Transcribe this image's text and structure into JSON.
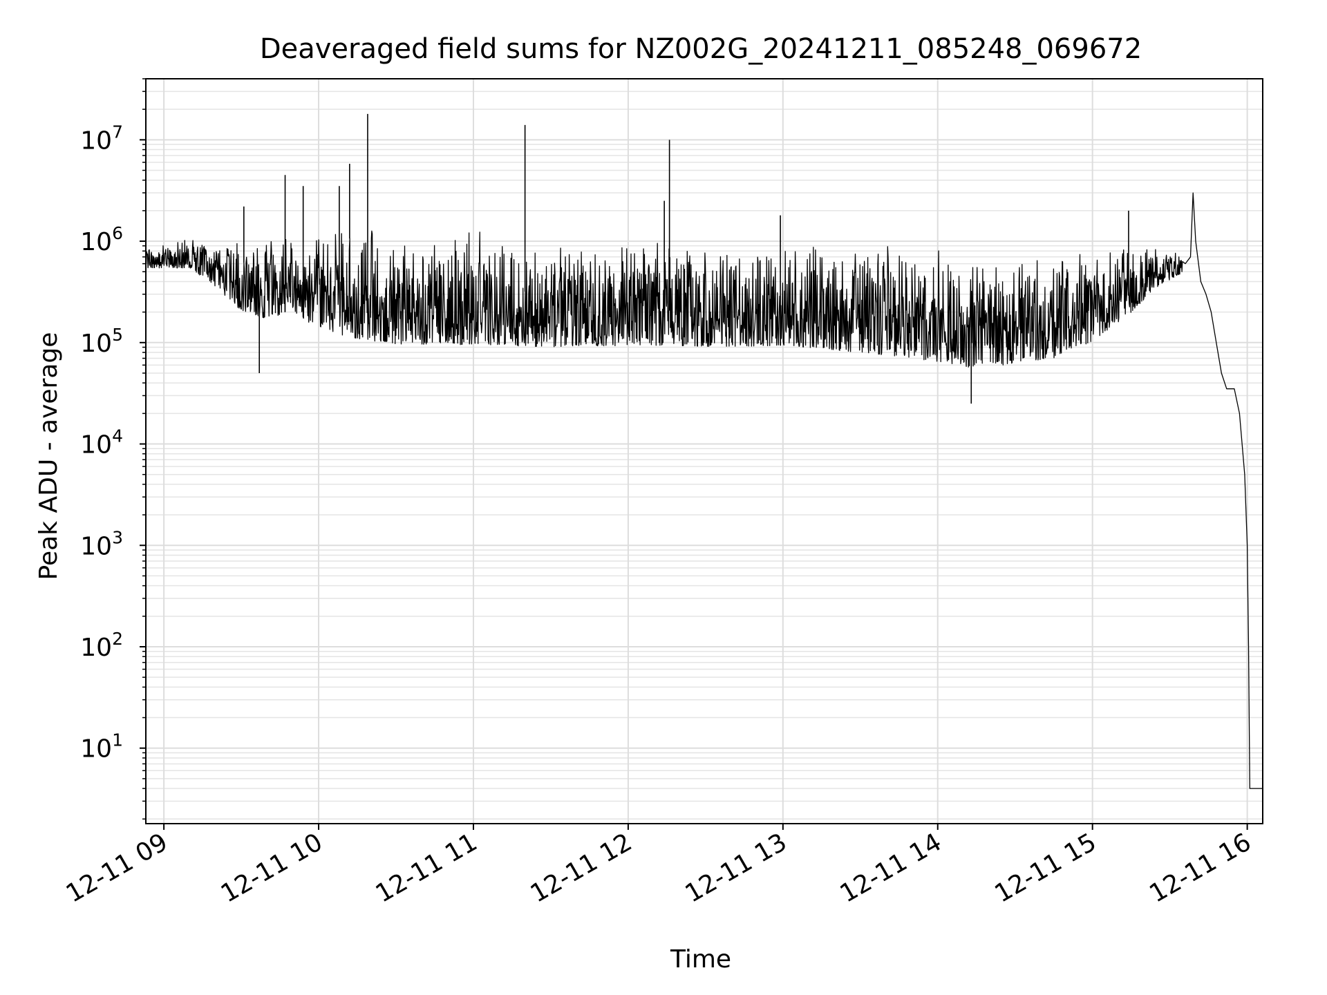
{
  "chart_data": {
    "type": "line",
    "title": "Deaveraged field sums for NZ002G_20241211_085248_069672",
    "xlabel": "Time",
    "ylabel": "Peak ADU - average",
    "y_scale": "log",
    "grid": true,
    "grid_minor": true,
    "legend": "none",
    "xlim": [
      "2024-12-11 08:53",
      "2024-12-11 16:06"
    ],
    "ylim": [
      1.8,
      40000000
    ],
    "x_ticks": [
      {
        "t": "2024-12-11 09:00",
        "label": "12-11 09"
      },
      {
        "t": "2024-12-11 10:00",
        "label": "12-11 10"
      },
      {
        "t": "2024-12-11 11:00",
        "label": "12-11 11"
      },
      {
        "t": "2024-12-11 12:00",
        "label": "12-11 12"
      },
      {
        "t": "2024-12-11 13:00",
        "label": "12-11 13"
      },
      {
        "t": "2024-12-11 14:00",
        "label": "12-11 14"
      },
      {
        "t": "2024-12-11 15:00",
        "label": "12-11 15"
      },
      {
        "t": "2024-12-11 16:00",
        "label": "12-11 16"
      }
    ],
    "y_ticks": [
      {
        "value": 10,
        "base": "10",
        "exp": "1"
      },
      {
        "value": 100,
        "base": "10",
        "exp": "2"
      },
      {
        "value": 1000,
        "base": "10",
        "exp": "3"
      },
      {
        "value": 10000,
        "base": "10",
        "exp": "4"
      },
      {
        "value": 100000,
        "base": "10",
        "exp": "5"
      },
      {
        "value": 1000000,
        "base": "10",
        "exp": "6"
      },
      {
        "value": 10000000,
        "base": "10",
        "exp": "7"
      }
    ],
    "series": [
      {
        "color": "#000000",
        "envelope": [
          {
            "t": "2024-12-11 08:53",
            "low": 500000,
            "high": 900000
          },
          {
            "t": "2024-12-11 09:10",
            "low": 480000,
            "high": 1100000
          },
          {
            "t": "2024-12-11 09:20",
            "low": 300000,
            "high": 1000000
          },
          {
            "t": "2024-12-11 09:30",
            "low": 150000,
            "high": 1200000
          },
          {
            "t": "2024-12-11 09:40",
            "low": 120000,
            "high": 1300000
          },
          {
            "t": "2024-12-11 09:50",
            "low": 150000,
            "high": 1300000
          },
          {
            "t": "2024-12-11 10:00",
            "low": 90000,
            "high": 1300000
          },
          {
            "t": "2024-12-11 10:15",
            "low": 70000,
            "high": 1400000
          },
          {
            "t": "2024-12-11 10:30",
            "low": 60000,
            "high": 1400000
          },
          {
            "t": "2024-12-11 10:45",
            "low": 60000,
            "high": 1400000
          },
          {
            "t": "2024-12-11 11:00",
            "low": 60000,
            "high": 1300000
          },
          {
            "t": "2024-12-11 11:15",
            "low": 60000,
            "high": 1100000
          },
          {
            "t": "2024-12-11 11:30",
            "low": 60000,
            "high": 900000
          },
          {
            "t": "2024-12-11 11:45",
            "low": 60000,
            "high": 1100000
          },
          {
            "t": "2024-12-11 12:00",
            "low": 60000,
            "high": 1100000
          },
          {
            "t": "2024-12-11 12:15",
            "low": 60000,
            "high": 1200000
          },
          {
            "t": "2024-12-11 12:30",
            "low": 60000,
            "high": 1000000
          },
          {
            "t": "2024-12-11 12:45",
            "low": 60000,
            "high": 1000000
          },
          {
            "t": "2024-12-11 13:00",
            "low": 60000,
            "high": 1200000
          },
          {
            "t": "2024-12-11 13:15",
            "low": 55000,
            "high": 1200000
          },
          {
            "t": "2024-12-11 13:30",
            "low": 50000,
            "high": 1100000
          },
          {
            "t": "2024-12-11 13:45",
            "low": 45000,
            "high": 1100000
          },
          {
            "t": "2024-12-11 14:00",
            "low": 40000,
            "high": 1000000
          },
          {
            "t": "2024-12-11 14:15",
            "low": 35000,
            "high": 700000
          },
          {
            "t": "2024-12-11 14:30",
            "low": 40000,
            "high": 800000
          },
          {
            "t": "2024-12-11 14:45",
            "low": 45000,
            "high": 900000
          },
          {
            "t": "2024-12-11 15:00",
            "low": 70000,
            "high": 900000
          },
          {
            "t": "2024-12-11 15:15",
            "low": 150000,
            "high": 1000000
          },
          {
            "t": "2024-12-11 15:25",
            "low": 300000,
            "high": 900000
          },
          {
            "t": "2024-12-11 15:35",
            "low": 450000,
            "high": 800000
          }
        ],
        "spikes": [
          {
            "t": "2024-12-11 09:31",
            "value": 2200000
          },
          {
            "t": "2024-12-11 09:37",
            "value": 50000
          },
          {
            "t": "2024-12-11 09:47",
            "value": 4500000
          },
          {
            "t": "2024-12-11 09:54",
            "value": 3500000
          },
          {
            "t": "2024-12-11 10:08",
            "value": 3500000
          },
          {
            "t": "2024-12-11 10:12",
            "value": 5800000
          },
          {
            "t": "2024-12-11 10:19",
            "value": 18000000
          },
          {
            "t": "2024-12-11 11:20",
            "value": 14000000
          },
          {
            "t": "2024-12-11 12:16",
            "value": 10000000
          },
          {
            "t": "2024-12-11 12:14",
            "value": 2500000
          },
          {
            "t": "2024-12-11 12:59",
            "value": 1800000
          },
          {
            "t": "2024-12-11 14:13",
            "value": 25000
          },
          {
            "t": "2024-12-11 15:14",
            "value": 2000000
          }
        ],
        "tail": [
          {
            "t": "2024-12-11 15:36",
            "value": 600000
          },
          {
            "t": "2024-12-11 15:38",
            "value": 700000
          },
          {
            "t": "2024-12-11 15:39",
            "value": 3000000
          },
          {
            "t": "2024-12-11 15:40",
            "value": 1000000
          },
          {
            "t": "2024-12-11 15:42",
            "value": 400000
          },
          {
            "t": "2024-12-11 15:44",
            "value": 300000
          },
          {
            "t": "2024-12-11 15:46",
            "value": 200000
          },
          {
            "t": "2024-12-11 15:48",
            "value": 100000
          },
          {
            "t": "2024-12-11 15:50",
            "value": 50000
          },
          {
            "t": "2024-12-11 15:52",
            "value": 35000
          },
          {
            "t": "2024-12-11 15:55",
            "value": 35000
          },
          {
            "t": "2024-12-11 15:57",
            "value": 20000
          },
          {
            "t": "2024-12-11 15:59",
            "value": 5000
          },
          {
            "t": "2024-12-11 16:00",
            "value": 1000
          },
          {
            "t": "2024-12-11 16:00:30",
            "value": 100
          },
          {
            "t": "2024-12-11 16:01",
            "value": 4
          },
          {
            "t": "2024-12-11 16:06",
            "value": 4
          }
        ]
      }
    ]
  }
}
